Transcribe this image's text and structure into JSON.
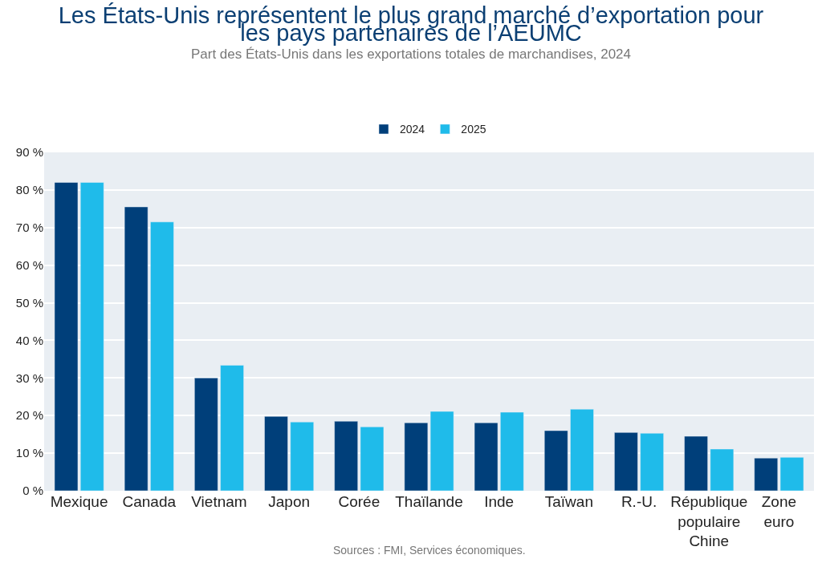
{
  "chart_data": {
    "type": "bar",
    "title": "Les États-Unis représentent le plus grand marché d’exportation pour\nles pays partenaires de l’AEUMC",
    "subtitle": "Part des États-Unis dans les exportations totales de marchandises, 2024",
    "categories": [
      "Mexique",
      "Canada",
      "Vietnam",
      "Japon",
      "Corée",
      "Thaïlande",
      "Inde",
      "Taïwan",
      "R.-U.",
      "République\npopulaire\nChine",
      "Zone\neuro"
    ],
    "series": [
      {
        "name": "2024",
        "color": "#003f7a",
        "values": [
          82,
          75.5,
          30,
          19.8,
          18.5,
          18.1,
          18.1,
          16,
          15.5,
          14.5,
          8.7
        ]
      },
      {
        "name": "2025",
        "color": "#1fbbea",
        "values": [
          82,
          71.5,
          33.4,
          18.3,
          17,
          21.1,
          20.9,
          21.7,
          15.3,
          11.1,
          8.9
        ]
      }
    ],
    "ylim": [
      0,
      90
    ],
    "yticks": [
      {
        "value": 0,
        "label": "0 %"
      },
      {
        "value": 10,
        "label": "10 %"
      },
      {
        "value": 20,
        "label": "20 %"
      },
      {
        "value": 30,
        "label": "30 %"
      },
      {
        "value": 40,
        "label": "40 %"
      },
      {
        "value": 50,
        "label": "50 %"
      },
      {
        "value": 60,
        "label": "60 %"
      },
      {
        "value": 70,
        "label": "70 %"
      },
      {
        "value": 80,
        "label": "80 %"
      },
      {
        "value": 90,
        "label": "90 %"
      }
    ],
    "grid": "y",
    "legend": "top",
    "annotations": [
      "Sources : FMI, Services économiques."
    ]
  }
}
